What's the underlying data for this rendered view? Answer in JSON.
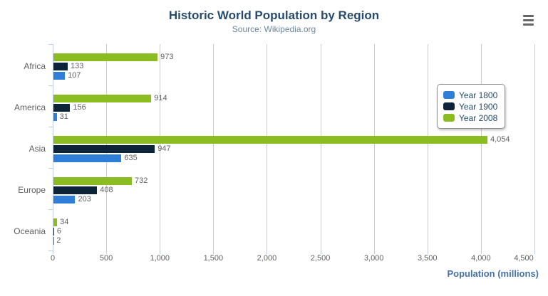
{
  "header": {
    "title": "Historic World Population by Region",
    "subtitle": "Source: Wikipedia.org"
  },
  "icons": {
    "menu": "hamburger-menu-icon"
  },
  "chart_data": {
    "type": "bar",
    "orientation": "horizontal",
    "title": "Historic World Population by Region",
    "subtitle": "Source: Wikipedia.org",
    "categories": [
      "Africa",
      "America",
      "Asia",
      "Europe",
      "Oceania"
    ],
    "series": [
      {
        "name": "Year 1800",
        "color": "#2f7ed8",
        "values": [
          107,
          31,
          635,
          203,
          2
        ]
      },
      {
        "name": "Year 1900",
        "color": "#0d233a",
        "values": [
          133,
          156,
          947,
          408,
          6
        ]
      },
      {
        "name": "Year 2008",
        "color": "#8bbc21",
        "values": [
          973,
          914,
          4054,
          732,
          34
        ]
      }
    ],
    "bar_order_in_group_top_to_bottom": [
      "Year 2008",
      "Year 1900",
      "Year 1800"
    ],
    "data_labels": true,
    "xlabel": "Population (millions)",
    "ylabel": "",
    "xlim": [
      0,
      4500
    ],
    "xticks": [
      0,
      500,
      1000,
      1500,
      2000,
      2500,
      3000,
      3500,
      4000,
      4500
    ],
    "grid": true,
    "legend_position": "right-middle"
  },
  "colors": {
    "title": "#274b6d",
    "subtitle": "#6d869f",
    "axis_title": "#4572a7",
    "axis_line": "#c0d0e0",
    "gridline": "#cccccc",
    "labels": "#606060",
    "legend_border": "#909090"
  }
}
